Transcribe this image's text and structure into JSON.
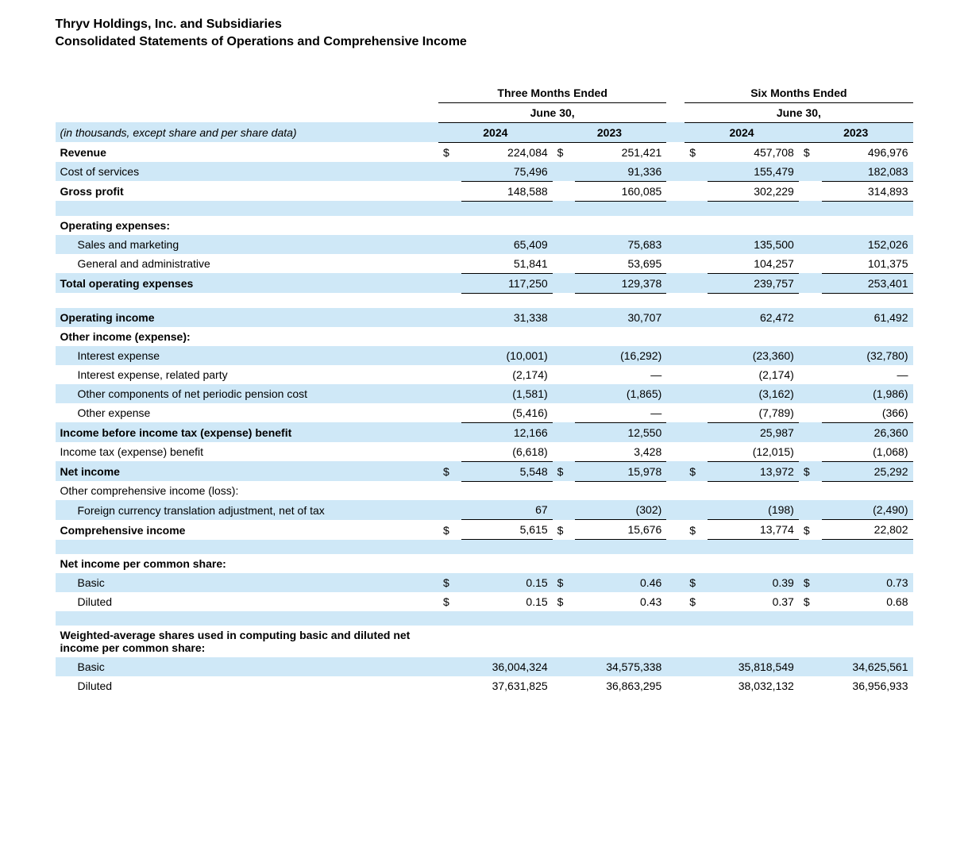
{
  "colors": {
    "row_shade": "#cfe8f7",
    "text": "#000000",
    "background": "#ffffff",
    "border": "#000000"
  },
  "header": {
    "company": "Thryv Holdings, Inc. and Subsidiaries",
    "statement": "Consolidated Statements of Operations and Comprehensive Income"
  },
  "periods": {
    "left": {
      "title": "Three Months Ended",
      "sub": "June 30,"
    },
    "right": {
      "title": "Six Months Ended",
      "sub": "June 30,"
    }
  },
  "years": {
    "c1": "2024",
    "c2": "2023",
    "c3": "2024",
    "c4": "2023"
  },
  "note": "(in thousands, except share and per share data)",
  "rows": {
    "revenue": {
      "label": "Revenue",
      "sym": "$",
      "v1": "224,084",
      "v2": "251,421",
      "v3": "457,708",
      "v4": "496,976"
    },
    "cos": {
      "label": "Cost of services",
      "v1": "75,496",
      "v2": "91,336",
      "v3": "155,479",
      "v4": "182,083"
    },
    "gross": {
      "label": "Gross profit",
      "v1": "148,588",
      "v2": "160,085",
      "v3": "302,229",
      "v4": "314,893"
    },
    "opex_hdr": {
      "label": "Operating expenses:"
    },
    "sm": {
      "label": "Sales and marketing",
      "v1": "65,409",
      "v2": "75,683",
      "v3": "135,500",
      "v4": "152,026"
    },
    "ga": {
      "label": "General and administrative",
      "v1": "51,841",
      "v2": "53,695",
      "v3": "104,257",
      "v4": "101,375"
    },
    "totopex": {
      "label": "Total operating expenses",
      "v1": "117,250",
      "v2": "129,378",
      "v3": "239,757",
      "v4": "253,401"
    },
    "opinc": {
      "label": "Operating income",
      "v1": "31,338",
      "v2": "30,707",
      "v3": "62,472",
      "v4": "61,492"
    },
    "oie_hdr": {
      "label": "Other income (expense):"
    },
    "intexp": {
      "label": "Interest expense",
      "v1": "(10,001)",
      "v2": "(16,292)",
      "v3": "(23,360)",
      "v4": "(32,780)"
    },
    "intexp_rp": {
      "label": "Interest expense, related party",
      "v1": "(2,174)",
      "v2": "—",
      "v3": "(2,174)",
      "v4": "—"
    },
    "pension": {
      "label": "Other components of net periodic pension cost",
      "v1": "(1,581)",
      "v2": "(1,865)",
      "v3": "(3,162)",
      "v4": "(1,986)"
    },
    "otherexp": {
      "label": "Other expense",
      "v1": "(5,416)",
      "v2": "—",
      "v3": "(7,789)",
      "v4": "(366)"
    },
    "ibt": {
      "label": "Income before income tax (expense) benefit",
      "v1": "12,166",
      "v2": "12,550",
      "v3": "25,987",
      "v4": "26,360"
    },
    "tax": {
      "label": "Income tax (expense) benefit",
      "v1": "(6,618)",
      "v2": "3,428",
      "v3": "(12,015)",
      "v4": "(1,068)"
    },
    "netinc": {
      "label": "Net income",
      "sym": "$",
      "v1": "5,548",
      "v2": "15,978",
      "v3": "13,972",
      "v4": "25,292"
    },
    "oci_hdr": {
      "label": "Other comprehensive income (loss):"
    },
    "fx": {
      "label": "Foreign currency translation adjustment, net of tax",
      "v1": "67",
      "v2": "(302)",
      "v3": "(198)",
      "v4": "(2,490)"
    },
    "compinc": {
      "label": "Comprehensive income",
      "sym": "$",
      "v1": "5,615",
      "v2": "15,676",
      "v3": "13,774",
      "v4": "22,802"
    },
    "eps_hdr": {
      "label": "Net income per common share:"
    },
    "eps_basic": {
      "label": "Basic",
      "sym": "$",
      "v1": "0.15",
      "v2": "0.46",
      "v3": "0.39",
      "v4": "0.73"
    },
    "eps_dil": {
      "label": "Diluted",
      "sym": "$",
      "v1": "0.15",
      "v2": "0.43",
      "v3": "0.37",
      "v4": "0.68"
    },
    "shares_hdr": {
      "label": "Weighted-average shares used in computing basic and diluted net income per common share:"
    },
    "sh_basic": {
      "label": "Basic",
      "v1": "36,004,324",
      "v2": "34,575,338",
      "v3": "35,818,549",
      "v4": "34,625,561"
    },
    "sh_dil": {
      "label": "Diluted",
      "v1": "37,631,825",
      "v2": "36,863,295",
      "v3": "38,032,132",
      "v4": "36,956,933"
    }
  }
}
